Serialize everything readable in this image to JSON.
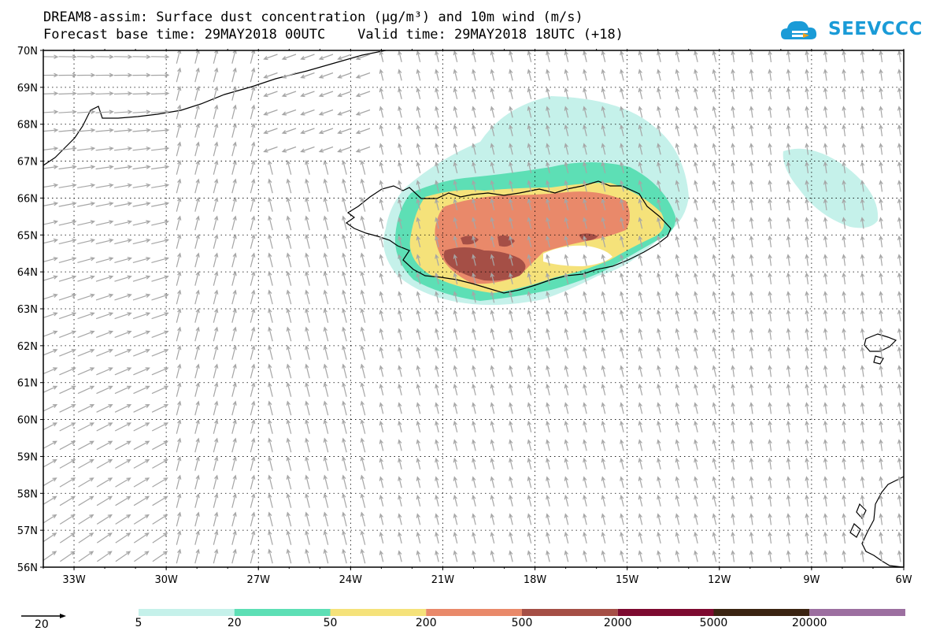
{
  "title_line1": "DREAM8-assim: Surface dust concentration (µg/m³) and 10m wind (m/s)",
  "title_line2": "Forecast base time: 29MAY2018 00UTC    Valid time: 29MAY2018 18UTC (+18)",
  "logo_text": "SEEVCCC",
  "lat_labels": [
    "70N",
    "69N",
    "68N",
    "67N",
    "66N",
    "65N",
    "64N",
    "63N",
    "62N",
    "61N",
    "60N",
    "59N",
    "58N",
    "57N",
    "56N"
  ],
  "lon_labels": [
    "33W",
    "30W",
    "27W",
    "24W",
    "21W",
    "18W",
    "15W",
    "12W",
    "9W",
    "6W"
  ],
  "wind_reference": {
    "label": "20",
    "speed": 20
  },
  "colorbar": {
    "labels": [
      "5",
      "20",
      "50",
      "200",
      "500",
      "2000",
      "5000",
      "20000"
    ],
    "colors": [
      "#c5f1ea",
      "#5ddfb5",
      "#f5e27a",
      "#e9896a",
      "#a54f46",
      "#7d0a30",
      "#3b2412",
      "#9c6fa0"
    ]
  },
  "colors": {
    "wind_arrow": "#a6a6a6",
    "coast": "#000000",
    "grid": "#000000"
  }
}
